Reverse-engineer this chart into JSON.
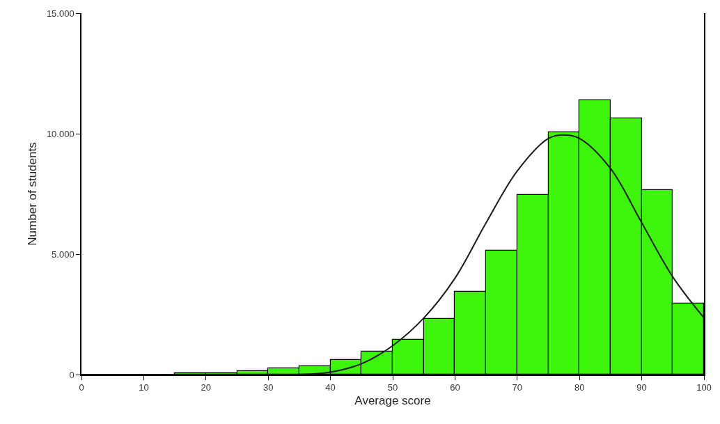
{
  "chart_data": {
    "type": "histogram",
    "xlabel": "Average score",
    "ylabel": "Number of students",
    "bins": [
      0,
      5,
      10,
      15,
      20,
      25,
      30,
      35,
      40,
      45,
      50,
      55,
      60,
      65,
      70,
      75,
      80,
      85,
      90,
      95,
      100
    ],
    "values": [
      null,
      null,
      null,
      50,
      50,
      150,
      250,
      350,
      600,
      950,
      1450,
      2300,
      3450,
      5150,
      7450,
      10050,
      11400,
      10650,
      7650,
      2950
    ],
    "color": "#3cf50a",
    "series": [
      {
        "type": "line",
        "color": "#1a1a1a",
        "x": [
          0,
          25,
          30,
          35,
          40,
          45,
          50,
          55,
          60,
          65,
          70,
          75,
          77.5,
          80,
          85,
          90,
          95,
          100
        ],
        "values": [
          0,
          0,
          0,
          0,
          100,
          450,
          1200,
          2350,
          4000,
          6300,
          8450,
          9800,
          9950,
          9800,
          8550,
          6300,
          4050,
          2350
        ]
      }
    ],
    "xlim": [
      0,
      100
    ],
    "xticks": [
      0,
      10,
      20,
      30,
      40,
      50,
      60,
      70,
      80,
      90,
      100
    ],
    "ylim": [
      0,
      15000
    ],
    "yticks": [
      0,
      {
        "value": 5000,
        "label": "5.000"
      },
      {
        "value": 10000,
        "label": "10.000"
      },
      {
        "value": 15000,
        "label": "15.000"
      }
    ]
  }
}
